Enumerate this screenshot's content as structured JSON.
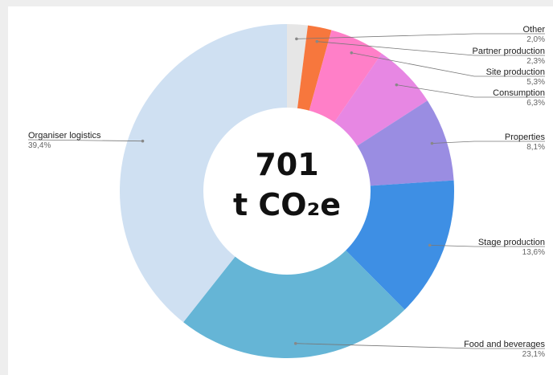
{
  "chart_data": {
    "type": "pie",
    "categories": [
      "Other",
      "Partner production",
      "Site production",
      "Consumption",
      "Properties",
      "Stage production",
      "Food and beverages",
      "Organiser logistics"
    ],
    "values": [
      2.0,
      2.3,
      5.3,
      6.3,
      8.1,
      13.6,
      23.1,
      39.4
    ],
    "value_labels": [
      "2,0%",
      "2,3%",
      "5,3%",
      "6,3%",
      "8,1%",
      "13,6%",
      "23,1%",
      "39,4%"
    ],
    "colors": [
      "#e6e6e6",
      "#f7773d",
      "#ff7fc8",
      "#e787e3",
      "#9a8de2",
      "#3e8fe4",
      "#65b5d6",
      "#cfe0f2"
    ],
    "center_value": 701,
    "center_unit": "t CO₂e"
  }
}
